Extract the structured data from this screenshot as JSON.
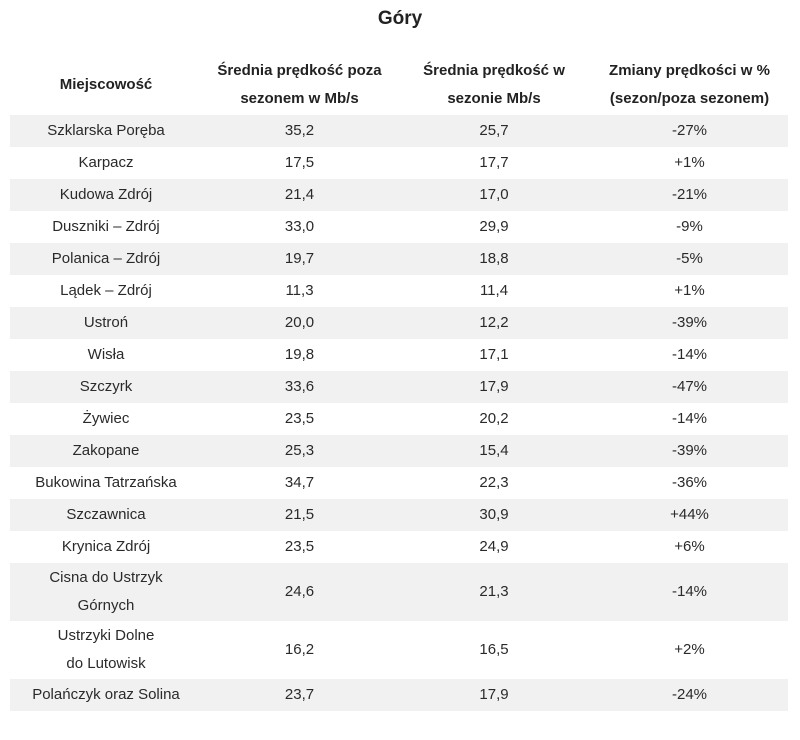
{
  "title": "Góry",
  "table": {
    "headers": [
      "Miejscowość",
      "Średnia prędkość poza sezonem w Mb/s",
      "Średnia prędkość w sezonie Mb/s",
      "Zmiany prędkości w % (sezon/poza sezonem)"
    ],
    "rows": [
      [
        "Szklarska Poręba",
        "35,2",
        "25,7",
        "-27%"
      ],
      [
        "Karpacz",
        "17,5",
        "17,7",
        "+1%"
      ],
      [
        "Kudowa Zdrój",
        "21,4",
        "17,0",
        "-21%"
      ],
      [
        "Duszniki – Zdrój",
        "33,0",
        "29,9",
        "-9%"
      ],
      [
        "Polanica – Zdrój",
        "19,7",
        "18,8",
        "-5%"
      ],
      [
        "Lądek – Zdrój",
        "11,3",
        "11,4",
        "+1%"
      ],
      [
        "Ustroń",
        "20,0",
        "12,2",
        "-39%"
      ],
      [
        "Wisła",
        "19,8",
        "17,1",
        "-14%"
      ],
      [
        "Szczyrk",
        "33,6",
        "17,9",
        "-47%"
      ],
      [
        "Żywiec",
        "23,5",
        "20,2",
        "-14%"
      ],
      [
        "Zakopane",
        "25,3",
        "15,4",
        "-39%"
      ],
      [
        "Bukowina Tatrzańska",
        "34,7",
        "22,3",
        "-36%"
      ],
      [
        "Szczawnica",
        "21,5",
        "30,9",
        "+44%"
      ],
      [
        "Krynica Zdrój",
        "23,5",
        "24,9",
        "+6%"
      ],
      [
        "Cisna do Ustrzyk Górnych",
        "24,6",
        "21,3",
        "-14%"
      ],
      [
        "Ustrzyki Dolne do Lutowisk",
        "16,2",
        "16,5",
        "+2%"
      ],
      [
        "Polańczyk oraz Solina",
        "23,7",
        "17,9",
        "-24%"
      ]
    ]
  }
}
